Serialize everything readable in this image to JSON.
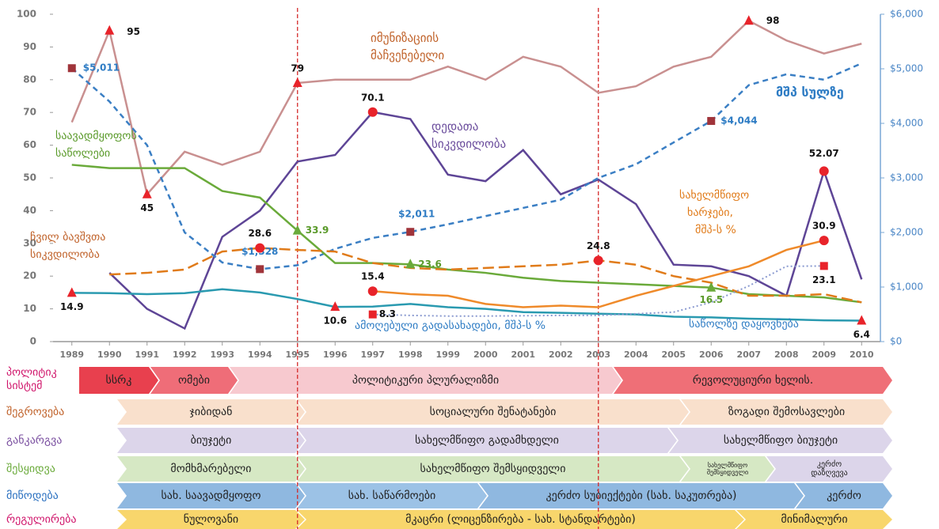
{
  "chart_data": {
    "type": "line",
    "x": [
      1989,
      1990,
      1991,
      1992,
      1993,
      1994,
      1995,
      1996,
      1997,
      1998,
      1999,
      2000,
      2001,
      2002,
      2003,
      2004,
      2005,
      2006,
      2007,
      2008,
      2009,
      2010
    ],
    "xlim": [
      1988.5,
      2010.5
    ],
    "xticks": [
      1989,
      1990,
      1991,
      1992,
      1993,
      1994,
      1995,
      1996,
      1997,
      1998,
      1999,
      2000,
      2001,
      2002,
      2003,
      2004,
      2005,
      2006,
      2007,
      2008,
      2009,
      2010
    ],
    "ylim": [
      0,
      100
    ],
    "yticks": [
      0,
      10,
      20,
      30,
      40,
      50,
      60,
      70,
      80,
      90,
      100
    ],
    "y2lim": [
      0,
      6000
    ],
    "y2ticks": [
      {
        "value": 0,
        "label": "$0"
      },
      {
        "value": 1000,
        "label": "$1,000"
      },
      {
        "value": 2000,
        "label": "$2,000"
      },
      {
        "value": 3000,
        "label": "$3,000"
      },
      {
        "value": 4000,
        "label": "$4,000"
      },
      {
        "value": 5000,
        "label": "$5,000"
      },
      {
        "value": 6000,
        "label": "$6,000"
      }
    ],
    "reference_lines_x": [
      1995,
      2003
    ],
    "series": [
      {
        "name": "იმუნიზაციის\nმაჩვენებელი",
        "color": "#c99090",
        "dash": "solid",
        "marker": "triangle",
        "marker_color": "#e8232a",
        "label_color": "#111",
        "values": [
          67,
          95,
          45,
          58,
          54,
          58,
          79,
          80,
          80,
          80,
          84,
          80,
          87,
          84,
          76,
          78,
          84,
          87,
          98,
          92,
          88,
          91
        ],
        "value_labels": [
          null,
          "95",
          "45",
          null,
          null,
          null,
          "79",
          null,
          null,
          null,
          null,
          null,
          null,
          null,
          null,
          null,
          null,
          null,
          "98",
          null,
          null,
          null
        ]
      },
      {
        "name": "დედათა\nსიკვდილობა",
        "color": "#5e4596",
        "dash": "solid",
        "marker": "circle",
        "marker_color": "#e8232a",
        "label_color": "#111",
        "values": [
          null,
          21,
          10,
          4,
          32,
          40,
          55,
          57,
          70.1,
          68,
          51,
          49,
          58.5,
          45,
          49.5,
          42,
          23.5,
          23,
          20,
          14,
          52.07,
          19
        ],
        "value_labels": [
          null,
          null,
          null,
          null,
          null,
          null,
          null,
          null,
          "70.1",
          null,
          null,
          null,
          null,
          null,
          null,
          null,
          null,
          null,
          null,
          null,
          "52.07",
          null
        ]
      },
      {
        "name": "მშპ სულზე",
        "color": "#3b7fc4",
        "dash": "dashed",
        "axis": "y2",
        "marker": "square",
        "marker_color": "#a0343a",
        "label_color": "#2e7cc4",
        "values": [
          5011,
          4400,
          3600,
          2000,
          1450,
          1328,
          1400,
          1700,
          1900,
          2011,
          2150,
          2300,
          2450,
          2600,
          3000,
          3250,
          3650,
          4044,
          4700,
          4900,
          4800,
          5100
        ],
        "value_labels": [
          "$5,011",
          null,
          null,
          null,
          null,
          "$1,328",
          null,
          null,
          null,
          "$2,011",
          null,
          null,
          null,
          null,
          null,
          null,
          null,
          "$4,044",
          null,
          null,
          null,
          null
        ]
      },
      {
        "name": "საავადმყოფოს\nსაწოლები",
        "color": "#6aaa3a",
        "dash": "solid",
        "marker": "triangle",
        "marker_color": "#6aaa3a",
        "label_color": "#5a9a2a",
        "values": [
          54,
          53,
          53,
          53,
          46,
          44,
          33.9,
          24,
          24,
          23.6,
          22,
          21,
          19.5,
          18.5,
          18,
          17.5,
          17,
          16.5,
          14.5,
          14,
          13.5,
          12
        ],
        "value_labels": [
          null,
          null,
          null,
          null,
          null,
          null,
          "33.9",
          null,
          null,
          "23.6",
          null,
          null,
          null,
          null,
          null,
          null,
          null,
          "16.5",
          null,
          null,
          null,
          null
        ]
      },
      {
        "name": "ჩვილ ბავშვთა\nსიკვდილობა",
        "color": "#e07b1a",
        "dash": "longdash",
        "marker": "circle",
        "marker_color": "#e8232a",
        "label_color": "#111",
        "values": [
          null,
          20.5,
          21,
          22,
          27.5,
          28.6,
          28,
          27.5,
          24,
          22.5,
          22,
          22.5,
          23,
          23.5,
          24.8,
          23.5,
          20,
          18,
          14,
          14,
          14.5,
          12
        ],
        "value_labels": [
          null,
          null,
          null,
          null,
          null,
          "28.6",
          null,
          null,
          null,
          null,
          null,
          null,
          null,
          null,
          "24.8",
          null,
          null,
          null,
          null,
          null,
          null,
          null
        ]
      },
      {
        "name": "საწოლზე დაყოვნება",
        "color": "#2a9ab0",
        "dash": "solid",
        "marker": "triangle",
        "marker_color": "#e8232a",
        "label_color": "#111",
        "values": [
          14.9,
          14.8,
          14.5,
          14.8,
          16,
          15,
          13,
          10.6,
          10.7,
          11.5,
          10.5,
          10,
          9,
          8.8,
          8.5,
          8.3,
          7.6,
          7.4,
          7,
          6.8,
          6.5,
          6.4
        ],
        "value_labels": [
          "14.9",
          null,
          null,
          null,
          null,
          null,
          null,
          "10.6",
          null,
          null,
          null,
          null,
          null,
          null,
          null,
          null,
          null,
          null,
          null,
          null,
          null,
          "6.4"
        ]
      },
      {
        "name": "სახელმწიფო\nხარჯები,\nმშპ-ს %",
        "color": "#ef8a2a",
        "dash": "solid",
        "marker": "circle",
        "marker_color": "#e8232a",
        "label_color": "#111",
        "values": [
          null,
          null,
          null,
          null,
          null,
          null,
          null,
          null,
          15.4,
          14.5,
          14,
          11.5,
          10.5,
          11,
          10.5,
          14,
          17,
          20,
          23,
          28,
          30.9,
          null
        ],
        "value_labels": [
          null,
          null,
          null,
          null,
          null,
          null,
          null,
          null,
          "15.4",
          null,
          null,
          null,
          null,
          null,
          null,
          null,
          null,
          null,
          null,
          null,
          "30.9",
          null
        ]
      },
      {
        "name": "ამოღებული გადასახადები, მშპ-ს %",
        "color": "#8a9ad0",
        "dash": "dotted",
        "marker": "square",
        "marker_color": "#e8232a",
        "label_color": "#111",
        "values": [
          null,
          null,
          null,
          null,
          null,
          null,
          null,
          null,
          8.3,
          8,
          7.8,
          7.8,
          7.9,
          8,
          8,
          8.5,
          9,
          12,
          17,
          23,
          23.1,
          null
        ],
        "value_labels": [
          null,
          null,
          null,
          null,
          null,
          null,
          null,
          null,
          "8.3",
          null,
          null,
          null,
          null,
          null,
          null,
          null,
          null,
          null,
          null,
          null,
          "23.1",
          null
        ]
      }
    ]
  },
  "process_table": {
    "rows": [
      {
        "label": "პოლიტიკ\nსისტემ",
        "segments": [
          "სსრკ",
          "ომები",
          "პოლიტიკური პლურალიზმი",
          "რევოლუციური ხელის."
        ]
      },
      {
        "label": "შეგროვება",
        "segments": [
          "ჯიბიდან",
          "სოციალური შენატანები",
          "ზოგადი შემოსავლები"
        ]
      },
      {
        "label": "განკარგვა",
        "segments": [
          "ბიუჯეტი",
          "სახელმწიფო გადამხდელი",
          "სახელმწიფო ბიუჯეტი"
        ]
      },
      {
        "label": "შესყიდვა",
        "segments": [
          "მომხმარებელი",
          "სახელმწიფო შემსყიდველი",
          "სახელმწიფო\nშემსყიდველი",
          "კერძო\nდაზღვევა"
        ]
      },
      {
        "label": "მიწოდება",
        "segments": [
          "სახ. საავადმყოფო",
          "სახ. საწარმოები",
          "კერძო სუბიექტები (სახ. საკუთრება)",
          "კერძო"
        ]
      },
      {
        "label": "რეგულირება",
        "segments": [
          "ნულოვანი",
          "მკაცრი (ლიცენზირება  - სახ. სტანდარტები)",
          "მინიმალური"
        ]
      }
    ]
  }
}
